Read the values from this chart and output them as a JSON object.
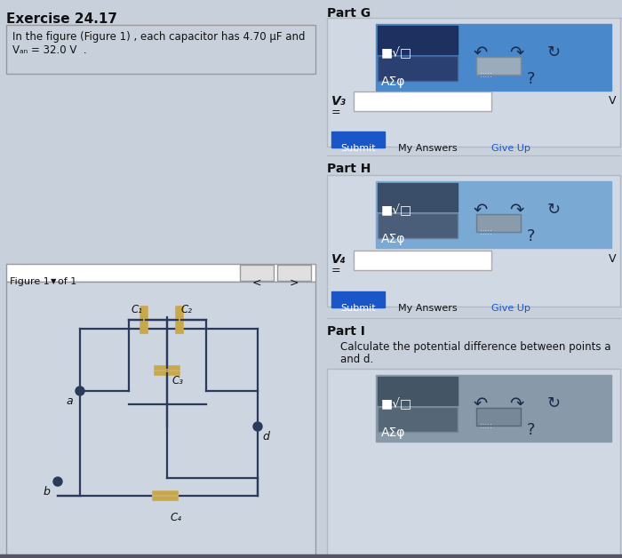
{
  "bg_color": "#c8d0dc",
  "white": "#ffffff",
  "blue_btn": "#1a56c8",
  "blue_toolbar": "#4a7fcc",
  "blue_toolbar_h": "#7aaad8",
  "gray_toolbar": "#8899aa",
  "dark_box": "#1a2d50",
  "dark_box_h": "#334466",
  "dark_box_i": "#445566",
  "text_dark": "#111111",
  "text_blue": "#1a56c8",
  "wire_color": "#2a3a5a",
  "cap_color": "#c8a84b",
  "left_title": "Exercise 24.17",
  "prob_text1": "In the figure (Figure 1) , each capacitor has 4.70 μF and",
  "prob_text2": "Vₐₙ = 32.0 V  .",
  "fig_label": "Figure 1",
  "of_label": "of 1",
  "part_g": "Part G",
  "part_h": "Part H",
  "part_i": "Part I",
  "part_i_t1": "Calculate the potential difference between points a",
  "part_i_t2": "and d.",
  "v3": "V₃",
  "v4": "V₄",
  "unit_v": "V",
  "submit": "Submit",
  "my_ans": "My Answers",
  "give_up": "Give Up",
  "tb1": "■√□",
  "tb2": "AΣφ",
  "qmark": "?",
  "cap_labels": [
    "C₁",
    "C₂",
    "C₃",
    "C₄"
  ],
  "nodes": [
    "a",
    "b",
    "d"
  ]
}
